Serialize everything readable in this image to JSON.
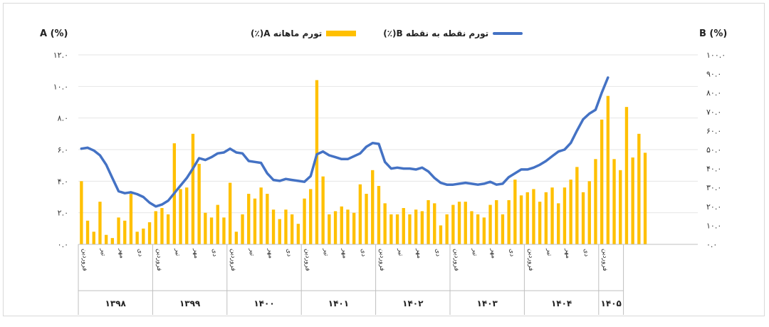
{
  "caption": "",
  "chart_data": {
    "type": "bar+line",
    "left_axis_label": "A (%)",
    "right_axis_label": "B (%)",
    "left_ticks": [
      "۰.۰",
      "۲.۰",
      "۴.۰",
      "۶.۰",
      "۸.۰",
      "۱۰.۰",
      "۱۲.۰"
    ],
    "right_ticks": [
      "۰.۰",
      "۱۰.۰",
      "۲۰.۰",
      "۳۰.۰",
      "۴۰.۰",
      "۵۰.۰",
      "۶۰.۰",
      "۷۰.۰",
      "۸۰.۰",
      "۹۰.۰",
      "۱۰۰.۰"
    ],
    "ylim_left": [
      0,
      12
    ],
    "ylim_right": [
      0,
      100
    ],
    "legend": {
      "placement": "top-center"
    },
    "series": [
      {
        "key": "A",
        "name": "تورم ماهانه A(٪)",
        "axis": "left",
        "color": "#FFC000",
        "kind": "bar",
        "values": [
          4.0,
          1.5,
          0.8,
          2.7,
          0.6,
          0.4,
          1.7,
          1.5,
          3.2,
          0.8,
          1.0,
          1.4,
          2.1,
          2.3,
          1.9,
          6.4,
          3.5,
          3.6,
          7.0,
          5.1,
          2.0,
          1.7,
          2.5,
          1.7,
          3.9,
          0.8,
          1.9,
          3.2,
          2.9,
          3.6,
          3.2,
          2.2,
          1.6,
          2.2,
          1.9,
          1.3,
          2.9,
          3.5,
          10.4,
          4.3,
          1.9,
          2.1,
          2.4,
          2.2,
          2.0,
          3.8,
          3.2,
          4.7,
          3.7,
          2.6,
          1.9,
          1.9,
          2.3,
          1.9,
          2.2,
          2.1,
          2.8,
          2.6,
          1.2,
          1.9,
          2.5,
          2.7,
          2.7,
          2.1,
          1.9,
          1.7,
          2.5,
          2.8,
          1.9,
          2.8,
          4.1,
          3.1,
          3.3,
          3.5,
          2.7,
          3.3,
          3.6,
          2.6,
          3.6,
          4.1,
          4.9,
          3.3,
          4.0,
          5.4,
          7.9,
          9.4,
          5.4,
          4.7,
          8.7,
          5.5
        ],
        "tail": [
          7.0,
          5.8
        ]
      },
      {
        "key": "B",
        "name": "تورم نقطه به نقطه B(٪)",
        "axis": "right",
        "color": "#4472C4",
        "kind": "line",
        "values": [
          50.5,
          51.0,
          49.5,
          47.0,
          42.0,
          35.0,
          28.0,
          27.0,
          27.5,
          26.5,
          25.0,
          22.0,
          20.0,
          21.0,
          23.0,
          27.0,
          31.0,
          35.0,
          40.0,
          45.5,
          44.5,
          46.0,
          48.0,
          48.5,
          50.5,
          48.5,
          48.0,
          44.0,
          43.5,
          43.0,
          37.5,
          34.0,
          33.5,
          34.5,
          34.0,
          33.5,
          33.0,
          36.0,
          47.5,
          49.0,
          47.0,
          46.0,
          45.0,
          45.0,
          46.5,
          48.0,
          51.5,
          53.5,
          53.0,
          43.5,
          40.0,
          40.5,
          40.0,
          40.0,
          39.5,
          40.5,
          38.5,
          35.0,
          32.5,
          31.5,
          31.5,
          32.0,
          32.5,
          32.0,
          31.5,
          32.0,
          33.0,
          31.5,
          32.0,
          35.5,
          37.5,
          39.5,
          39.5,
          40.5,
          42.0,
          44.0,
          46.5,
          49.0,
          50.0,
          53.5,
          60.0,
          66.0,
          69.0,
          71.0,
          80.0,
          88.0
        ]
      }
    ],
    "years": [
      "۱۳۹۸",
      "۱۳۹۹",
      "۱۴۰۰",
      "۱۴۰۱",
      "۱۴۰۲",
      "۱۴۰۳",
      "۱۴۰۴",
      "۱۴۰۵"
    ],
    "month_labels": [
      "فروردین",
      "تیر",
      "مهر",
      "دی"
    ]
  }
}
